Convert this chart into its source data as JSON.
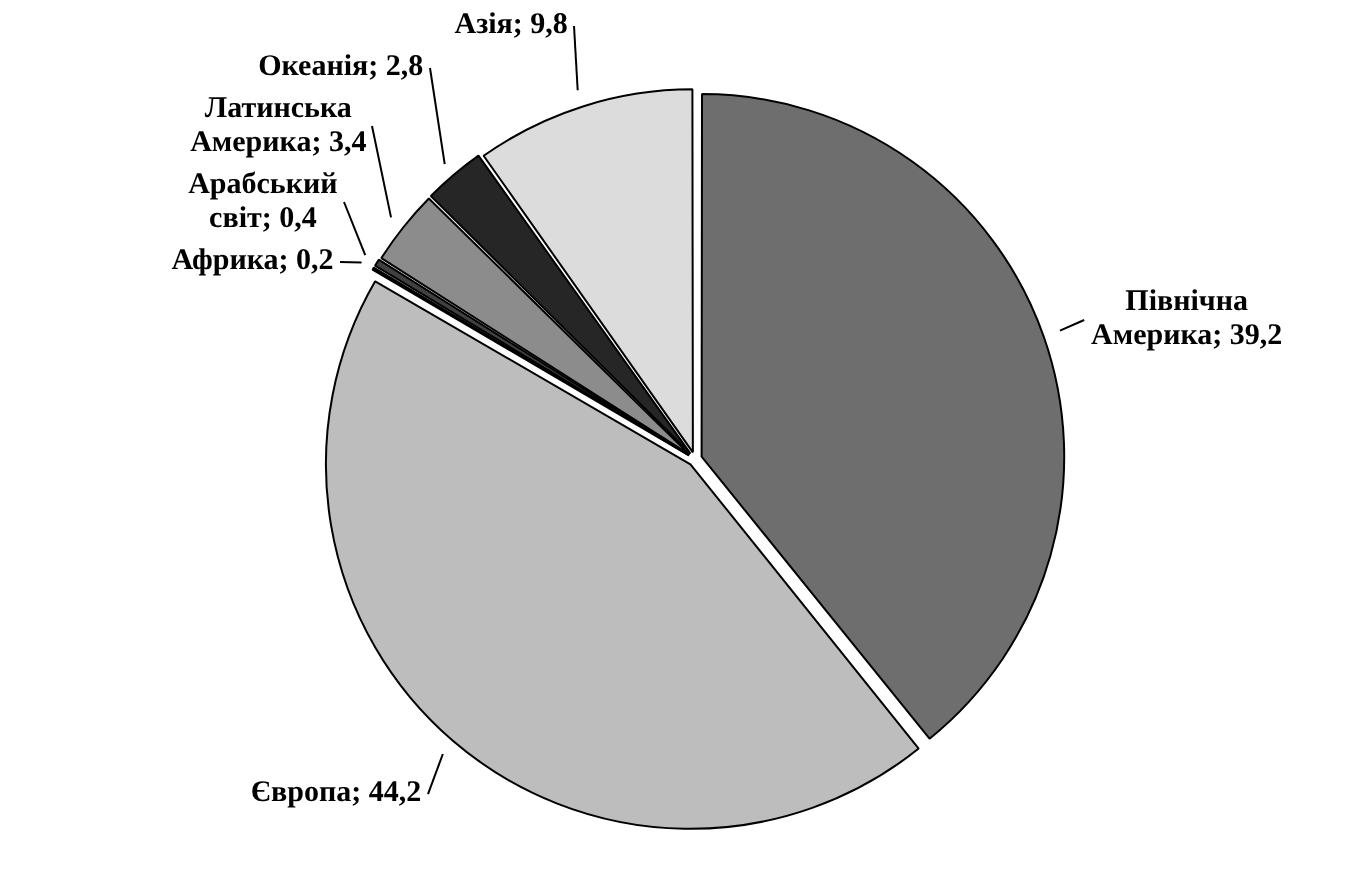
{
  "chart_data": {
    "type": "pie",
    "categories": [
      "Північна Америка",
      "Європа",
      "Африка",
      "Арабський світ",
      "Латинська Америка",
      "Океанія",
      "Азія"
    ],
    "values": [
      39.2,
      44.2,
      0.2,
      0.4,
      3.4,
      2.8,
      9.8
    ],
    "value_labels": [
      "39,2",
      "44,2",
      "0,2",
      "0,4",
      "3,4",
      "2,8",
      "9,8"
    ],
    "colors": [
      "#6e6e6e",
      "#bdbdbd",
      "#000000",
      "#404040",
      "#8c8c8c",
      "#262626",
      "#dcdcdc"
    ],
    "legend": false
  }
}
